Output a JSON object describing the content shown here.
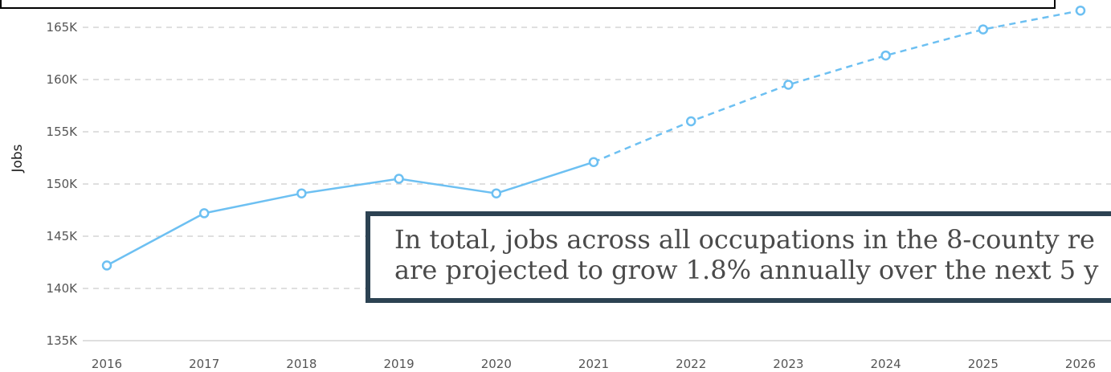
{
  "chart_data": {
    "type": "line",
    "ylabel": "Jobs",
    "xlabel": "",
    "categories": [
      "2016",
      "2017",
      "2018",
      "2019",
      "2020",
      "2021",
      "2022",
      "2023",
      "2024",
      "2025",
      "2026"
    ],
    "y_ticks": [
      "135K",
      "140K",
      "145K",
      "150K",
      "155K",
      "160K",
      "165K"
    ],
    "ylim": [
      135000,
      166000
    ],
    "grid": "horizontal dashed",
    "series": [
      {
        "historical_values": [
          142200,
          147200,
          149100,
          150500,
          149100,
          152100
        ],
        "projected_values": [
          152100,
          156000,
          159500,
          162300,
          164800,
          166600
        ],
        "color": "#6dc0f2"
      }
    ],
    "annotation": {
      "line1": "In total, jobs across all occupations in the 8-county re",
      "line2": "are projected to grow 1.8% annually over the next 5 y"
    }
  },
  "colors": {
    "line": "#6dc0f2",
    "grid": "#cccccc",
    "callout_border": "#2c4252"
  }
}
